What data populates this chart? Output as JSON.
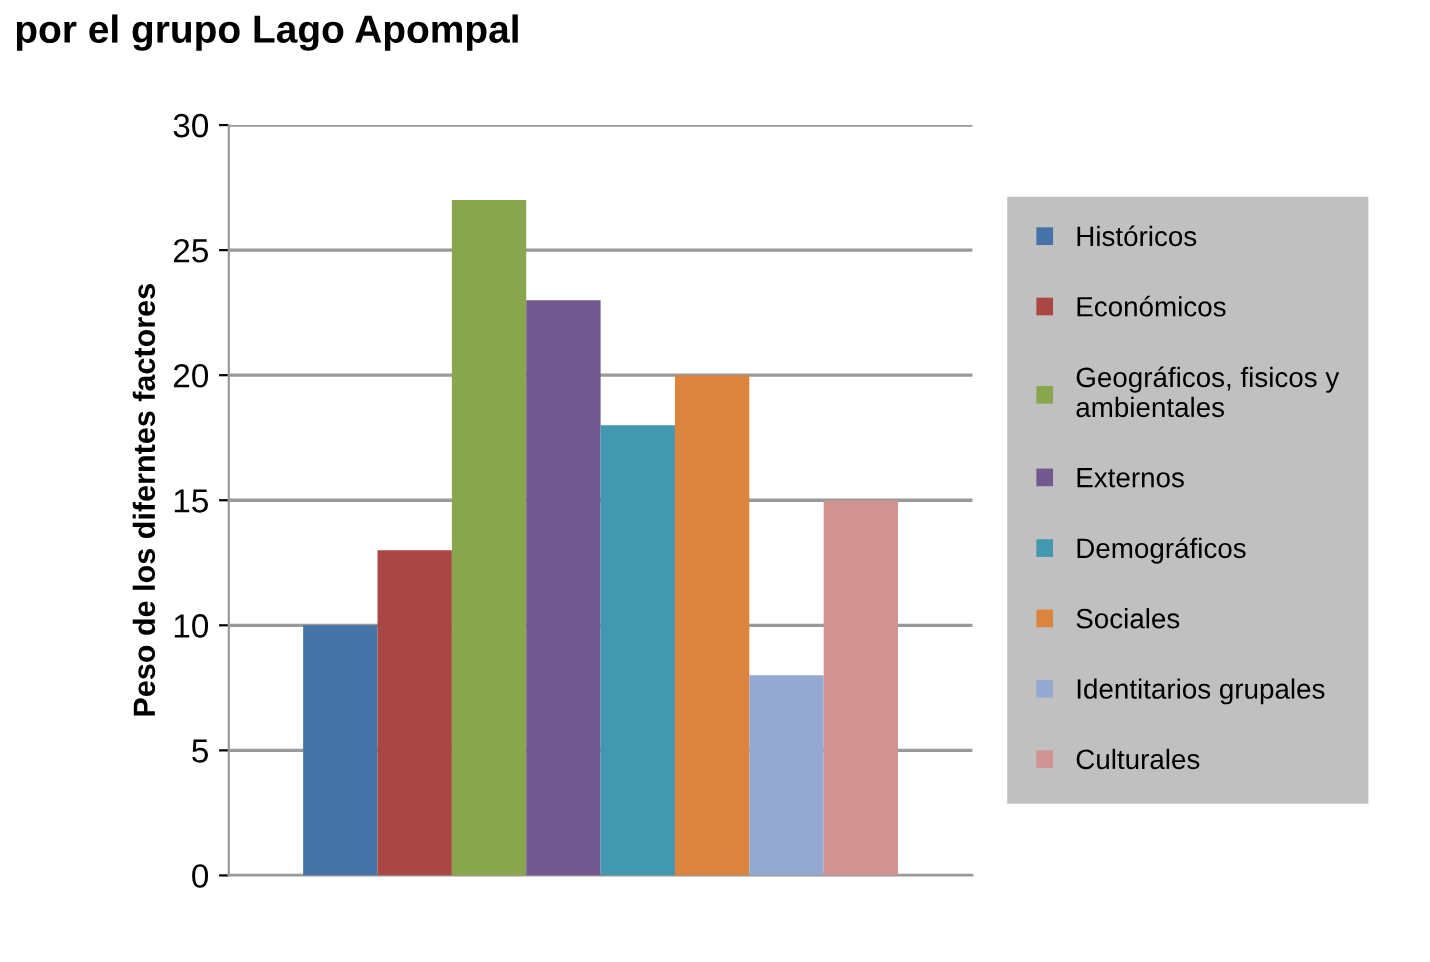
{
  "chart_data": {
    "type": "bar",
    "title": "por el grupo Lago Apompal",
    "ylabel": "Peso de los diferntes factores",
    "categories": [
      null
    ],
    "series": [
      {
        "name": "Históricos",
        "color": "#4572a7",
        "values": [
          10
        ]
      },
      {
        "name": "Económicos",
        "color": "#aa4643",
        "values": [
          13
        ]
      },
      {
        "name": "Geográficos, fisicos y\nambientales",
        "color": "#89a54e",
        "values": [
          27
        ]
      },
      {
        "name": "Externos",
        "color": "#71588f",
        "values": [
          23
        ]
      },
      {
        "name": "Demográficos",
        "color": "#4198af",
        "values": [
          18
        ]
      },
      {
        "name": "Sociales",
        "color": "#db843d",
        "values": [
          20
        ]
      },
      {
        "name": "Identitarios grupales",
        "color": "#93a9cf",
        "values": [
          8
        ]
      },
      {
        "name": "Culturales",
        "color": "#d19392",
        "values": [
          15
        ]
      }
    ],
    "ylim": [
      0,
      30
    ],
    "yticks": [
      0,
      5,
      10,
      15,
      20,
      25,
      30
    ],
    "grid": "y",
    "legend": "right"
  }
}
